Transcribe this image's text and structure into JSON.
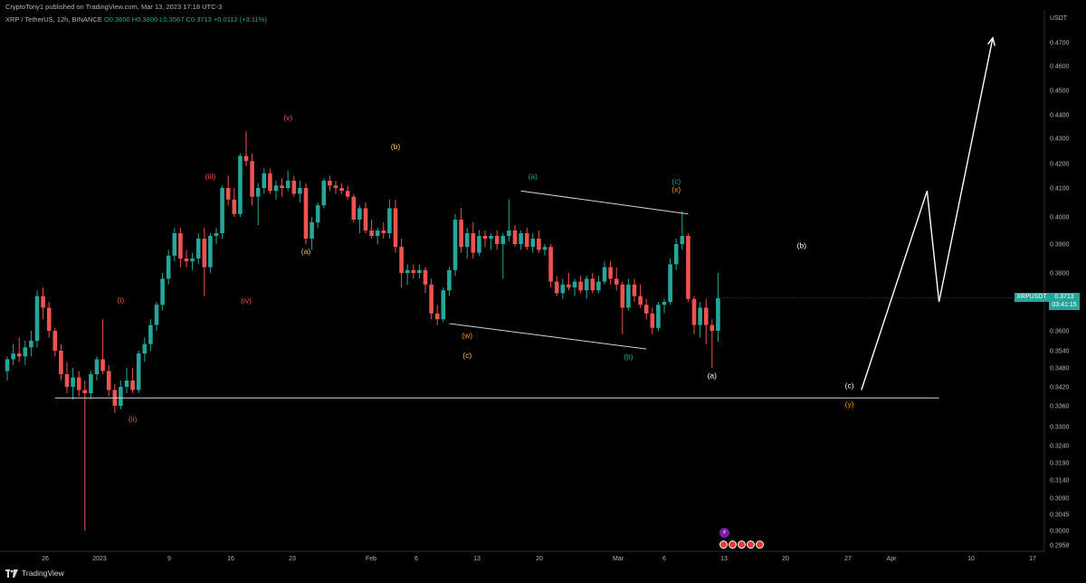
{
  "header": {
    "published": "CryptoTony1 published on TradingView.com, Mar 13, 2023 17:18 UTC-3",
    "symbol_line": "XRP / TetherUS, 12h, BINANCE",
    "ohlc": "O0.3600 H0.3800 L0.3567 C0.3713 +0.0112 (+3.11%)"
  },
  "currency": "USDT",
  "last_price": {
    "symbol": "XRPUSDT",
    "price": "0.3713",
    "countdown": "03:41:15",
    "color": "#26a69a"
  },
  "footer": {
    "brand": "TradingView"
  },
  "event_icons": {
    "bolt": "⚡",
    "flag_color": "#e53935",
    "flag_count": 5
  },
  "chart_data": {
    "type": "candlestick",
    "y_axis": {
      "ticks": [
        "0.4700",
        "0.4600",
        "0.4500",
        "0.4400",
        "0.4300",
        "0.4200",
        "0.4100",
        "0.4000",
        "0.3900",
        "0.3800",
        "0.3700",
        "0.3600",
        "0.3540",
        "0.3480",
        "0.3420",
        "0.3360",
        "0.3300",
        "0.3240",
        "0.3190",
        "0.3140",
        "0.3090",
        "0.3045",
        "0.3000",
        "0.2958"
      ]
    },
    "x_axis": {
      "ticks": [
        "26",
        "2023",
        "2",
        "9",
        "16",
        "23",
        "Feb",
        "6",
        "13",
        "20",
        "Mar",
        "6",
        "13",
        "20",
        "27",
        "Apr",
        "10",
        "17"
      ]
    },
    "colors": {
      "up": "#26a69a",
      "down": "#ef5350"
    },
    "candles": [
      {
        "o": 0.347,
        "h": 0.352,
        "l": 0.344,
        "c": 0.351
      },
      {
        "o": 0.351,
        "h": 0.356,
        "l": 0.349,
        "c": 0.353
      },
      {
        "o": 0.353,
        "h": 0.358,
        "l": 0.35,
        "c": 0.352
      },
      {
        "o": 0.352,
        "h": 0.357,
        "l": 0.349,
        "c": 0.355
      },
      {
        "o": 0.355,
        "h": 0.36,
        "l": 0.352,
        "c": 0.357
      },
      {
        "o": 0.357,
        "h": 0.374,
        "l": 0.355,
        "c": 0.372
      },
      {
        "o": 0.372,
        "h": 0.375,
        "l": 0.364,
        "c": 0.368
      },
      {
        "o": 0.368,
        "h": 0.37,
        "l": 0.358,
        "c": 0.36
      },
      {
        "o": 0.36,
        "h": 0.361,
        "l": 0.352,
        "c": 0.354
      },
      {
        "o": 0.354,
        "h": 0.356,
        "l": 0.344,
        "c": 0.346
      },
      {
        "o": 0.346,
        "h": 0.35,
        "l": 0.34,
        "c": 0.342
      },
      {
        "o": 0.342,
        "h": 0.348,
        "l": 0.338,
        "c": 0.345
      },
      {
        "o": 0.345,
        "h": 0.347,
        "l": 0.339,
        "c": 0.341
      },
      {
        "o": 0.341,
        "h": 0.344,
        "l": 0.3,
        "c": 0.34
      },
      {
        "o": 0.34,
        "h": 0.347,
        "l": 0.338,
        "c": 0.346
      },
      {
        "o": 0.346,
        "h": 0.352,
        "l": 0.344,
        "c": 0.351
      },
      {
        "o": 0.351,
        "h": 0.364,
        "l": 0.346,
        "c": 0.347
      },
      {
        "o": 0.347,
        "h": 0.349,
        "l": 0.339,
        "c": 0.341
      },
      {
        "o": 0.341,
        "h": 0.343,
        "l": 0.334,
        "c": 0.336
      },
      {
        "o": 0.336,
        "h": 0.344,
        "l": 0.335,
        "c": 0.342
      },
      {
        "o": 0.342,
        "h": 0.348,
        "l": 0.34,
        "c": 0.344
      },
      {
        "o": 0.344,
        "h": 0.348,
        "l": 0.34,
        "c": 0.341
      },
      {
        "o": 0.341,
        "h": 0.354,
        "l": 0.34,
        "c": 0.353
      },
      {
        "o": 0.353,
        "h": 0.358,
        "l": 0.35,
        "c": 0.356
      },
      {
        "o": 0.356,
        "h": 0.364,
        "l": 0.354,
        "c": 0.362
      },
      {
        "o": 0.362,
        "h": 0.37,
        "l": 0.36,
        "c": 0.369
      },
      {
        "o": 0.369,
        "h": 0.38,
        "l": 0.367,
        "c": 0.378
      },
      {
        "o": 0.378,
        "h": 0.388,
        "l": 0.376,
        "c": 0.386
      },
      {
        "o": 0.386,
        "h": 0.396,
        "l": 0.384,
        "c": 0.394
      },
      {
        "o": 0.394,
        "h": 0.396,
        "l": 0.382,
        "c": 0.385
      },
      {
        "o": 0.385,
        "h": 0.388,
        "l": 0.382,
        "c": 0.384
      },
      {
        "o": 0.384,
        "h": 0.387,
        "l": 0.381,
        "c": 0.385
      },
      {
        "o": 0.385,
        "h": 0.394,
        "l": 0.383,
        "c": 0.392
      },
      {
        "o": 0.392,
        "h": 0.396,
        "l": 0.372,
        "c": 0.382
      },
      {
        "o": 0.382,
        "h": 0.394,
        "l": 0.38,
        "c": 0.393
      },
      {
        "o": 0.393,
        "h": 0.396,
        "l": 0.39,
        "c": 0.394
      },
      {
        "o": 0.394,
        "h": 0.411,
        "l": 0.392,
        "c": 0.41
      },
      {
        "o": 0.41,
        "h": 0.415,
        "l": 0.404,
        "c": 0.406
      },
      {
        "o": 0.406,
        "h": 0.41,
        "l": 0.4,
        "c": 0.401
      },
      {
        "o": 0.401,
        "h": 0.424,
        "l": 0.4,
        "c": 0.423
      },
      {
        "o": 0.423,
        "h": 0.433,
        "l": 0.419,
        "c": 0.421
      },
      {
        "o": 0.421,
        "h": 0.424,
        "l": 0.404,
        "c": 0.407
      },
      {
        "o": 0.407,
        "h": 0.412,
        "l": 0.397,
        "c": 0.41
      },
      {
        "o": 0.41,
        "h": 0.418,
        "l": 0.408,
        "c": 0.416
      },
      {
        "o": 0.416,
        "h": 0.418,
        "l": 0.408,
        "c": 0.409
      },
      {
        "o": 0.409,
        "h": 0.413,
        "l": 0.406,
        "c": 0.411
      },
      {
        "o": 0.411,
        "h": 0.414,
        "l": 0.407,
        "c": 0.41
      },
      {
        "o": 0.41,
        "h": 0.417,
        "l": 0.409,
        "c": 0.413
      },
      {
        "o": 0.413,
        "h": 0.415,
        "l": 0.407,
        "c": 0.408
      },
      {
        "o": 0.408,
        "h": 0.413,
        "l": 0.405,
        "c": 0.41
      },
      {
        "o": 0.41,
        "h": 0.412,
        "l": 0.39,
        "c": 0.392
      },
      {
        "o": 0.392,
        "h": 0.4,
        "l": 0.388,
        "c": 0.398
      },
      {
        "o": 0.398,
        "h": 0.405,
        "l": 0.396,
        "c": 0.404
      },
      {
        "o": 0.404,
        "h": 0.414,
        "l": 0.403,
        "c": 0.413
      },
      {
        "o": 0.413,
        "h": 0.415,
        "l": 0.409,
        "c": 0.411
      },
      {
        "o": 0.411,
        "h": 0.413,
        "l": 0.408,
        "c": 0.41
      },
      {
        "o": 0.41,
        "h": 0.412,
        "l": 0.408,
        "c": 0.409
      },
      {
        "o": 0.409,
        "h": 0.411,
        "l": 0.406,
        "c": 0.407
      },
      {
        "o": 0.407,
        "h": 0.408,
        "l": 0.398,
        "c": 0.399
      },
      {
        "o": 0.399,
        "h": 0.404,
        "l": 0.394,
        "c": 0.403
      },
      {
        "o": 0.403,
        "h": 0.405,
        "l": 0.394,
        "c": 0.395
      },
      {
        "o": 0.395,
        "h": 0.399,
        "l": 0.392,
        "c": 0.393
      },
      {
        "o": 0.393,
        "h": 0.396,
        "l": 0.39,
        "c": 0.395
      },
      {
        "o": 0.395,
        "h": 0.398,
        "l": 0.392,
        "c": 0.394
      },
      {
        "o": 0.394,
        "h": 0.406,
        "l": 0.392,
        "c": 0.403
      },
      {
        "o": 0.403,
        "h": 0.406,
        "l": 0.387,
        "c": 0.389
      },
      {
        "o": 0.389,
        "h": 0.392,
        "l": 0.375,
        "c": 0.38
      },
      {
        "o": 0.38,
        "h": 0.383,
        "l": 0.376,
        "c": 0.381
      },
      {
        "o": 0.381,
        "h": 0.383,
        "l": 0.378,
        "c": 0.38
      },
      {
        "o": 0.38,
        "h": 0.383,
        "l": 0.378,
        "c": 0.381
      },
      {
        "o": 0.381,
        "h": 0.382,
        "l": 0.373,
        "c": 0.376
      },
      {
        "o": 0.376,
        "h": 0.378,
        "l": 0.364,
        "c": 0.366
      },
      {
        "o": 0.366,
        "h": 0.369,
        "l": 0.362,
        "c": 0.364
      },
      {
        "o": 0.364,
        "h": 0.375,
        "l": 0.363,
        "c": 0.374
      },
      {
        "o": 0.374,
        "h": 0.382,
        "l": 0.372,
        "c": 0.381
      },
      {
        "o": 0.381,
        "h": 0.401,
        "l": 0.379,
        "c": 0.399
      },
      {
        "o": 0.399,
        "h": 0.403,
        "l": 0.387,
        "c": 0.389
      },
      {
        "o": 0.389,
        "h": 0.396,
        "l": 0.385,
        "c": 0.394
      },
      {
        "o": 0.394,
        "h": 0.398,
        "l": 0.385,
        "c": 0.387
      },
      {
        "o": 0.387,
        "h": 0.395,
        "l": 0.386,
        "c": 0.393
      },
      {
        "o": 0.393,
        "h": 0.395,
        "l": 0.389,
        "c": 0.392
      },
      {
        "o": 0.392,
        "h": 0.394,
        "l": 0.388,
        "c": 0.393
      },
      {
        "o": 0.393,
        "h": 0.395,
        "l": 0.388,
        "c": 0.39
      },
      {
        "o": 0.39,
        "h": 0.394,
        "l": 0.378,
        "c": 0.393
      },
      {
        "o": 0.393,
        "h": 0.406,
        "l": 0.391,
        "c": 0.395
      },
      {
        "o": 0.395,
        "h": 0.397,
        "l": 0.389,
        "c": 0.39
      },
      {
        "o": 0.39,
        "h": 0.395,
        "l": 0.388,
        "c": 0.394
      },
      {
        "o": 0.394,
        "h": 0.396,
        "l": 0.388,
        "c": 0.389
      },
      {
        "o": 0.389,
        "h": 0.394,
        "l": 0.387,
        "c": 0.392
      },
      {
        "o": 0.392,
        "h": 0.395,
        "l": 0.387,
        "c": 0.388
      },
      {
        "o": 0.388,
        "h": 0.39,
        "l": 0.386,
        "c": 0.389
      },
      {
        "o": 0.389,
        "h": 0.39,
        "l": 0.375,
        "c": 0.377
      },
      {
        "o": 0.377,
        "h": 0.379,
        "l": 0.372,
        "c": 0.373
      },
      {
        "o": 0.373,
        "h": 0.378,
        "l": 0.371,
        "c": 0.376
      },
      {
        "o": 0.376,
        "h": 0.38,
        "l": 0.374,
        "c": 0.375
      },
      {
        "o": 0.375,
        "h": 0.378,
        "l": 0.372,
        "c": 0.377
      },
      {
        "o": 0.377,
        "h": 0.379,
        "l": 0.373,
        "c": 0.374
      },
      {
        "o": 0.374,
        "h": 0.379,
        "l": 0.371,
        "c": 0.378
      },
      {
        "o": 0.378,
        "h": 0.38,
        "l": 0.373,
        "c": 0.374
      },
      {
        "o": 0.374,
        "h": 0.379,
        "l": 0.373,
        "c": 0.377
      },
      {
        "o": 0.377,
        "h": 0.384,
        "l": 0.376,
        "c": 0.382
      },
      {
        "o": 0.382,
        "h": 0.384,
        "l": 0.376,
        "c": 0.378
      },
      {
        "o": 0.378,
        "h": 0.382,
        "l": 0.374,
        "c": 0.376
      },
      {
        "o": 0.376,
        "h": 0.377,
        "l": 0.359,
        "c": 0.368
      },
      {
        "o": 0.368,
        "h": 0.378,
        "l": 0.367,
        "c": 0.376
      },
      {
        "o": 0.376,
        "h": 0.378,
        "l": 0.37,
        "c": 0.372
      },
      {
        "o": 0.372,
        "h": 0.376,
        "l": 0.368,
        "c": 0.369
      },
      {
        "o": 0.369,
        "h": 0.371,
        "l": 0.364,
        "c": 0.366
      },
      {
        "o": 0.366,
        "h": 0.368,
        "l": 0.359,
        "c": 0.361
      },
      {
        "o": 0.361,
        "h": 0.37,
        "l": 0.36,
        "c": 0.369
      },
      {
        "o": 0.369,
        "h": 0.371,
        "l": 0.366,
        "c": 0.37
      },
      {
        "o": 0.37,
        "h": 0.385,
        "l": 0.369,
        "c": 0.383
      },
      {
        "o": 0.383,
        "h": 0.392,
        "l": 0.381,
        "c": 0.39
      },
      {
        "o": 0.39,
        "h": 0.402,
        "l": 0.388,
        "c": 0.393
      },
      {
        "o": 0.393,
        "h": 0.394,
        "l": 0.37,
        "c": 0.371
      },
      {
        "o": 0.371,
        "h": 0.372,
        "l": 0.359,
        "c": 0.362
      },
      {
        "o": 0.362,
        "h": 0.37,
        "l": 0.358,
        "c": 0.368
      },
      {
        "o": 0.368,
        "h": 0.371,
        "l": 0.356,
        "c": 0.362
      },
      {
        "o": 0.362,
        "h": 0.364,
        "l": 0.348,
        "c": 0.36
      },
      {
        "o": 0.36,
        "h": 0.38,
        "l": 0.3567,
        "c": 0.3713
      }
    ],
    "annotations": {
      "wave_labels": [
        {
          "text": "(i)",
          "color": "#ef5350",
          "i": 19,
          "p": 0.369,
          "pos": "above"
        },
        {
          "text": "(ii)",
          "color": "#ef5350",
          "i": 21,
          "p": 0.3335,
          "pos": "below"
        },
        {
          "text": "(iii)",
          "color": "#ef5350",
          "i": 34,
          "p": 0.413,
          "pos": "above"
        },
        {
          "text": "(iv)",
          "color": "#ef5350",
          "i": 40,
          "p": 0.372,
          "pos": "below"
        },
        {
          "text": "(v)",
          "color": "#ef5350",
          "i": 47,
          "p": 0.437,
          "pos": "above"
        },
        {
          "text": "(a)",
          "color": "#f0c05a",
          "i": 50,
          "p": 0.389,
          "pos": "below"
        },
        {
          "text": "(b)",
          "color": "#f0c05a",
          "i": 65,
          "p": 0.425,
          "pos": "above"
        },
        {
          "text": "(w)",
          "color": "#ff9800",
          "i": 77,
          "p": 0.36,
          "pos": "below"
        },
        {
          "text": "(c)",
          "color": "#f0c05a",
          "i": 77,
          "p": 0.354,
          "pos": "below"
        },
        {
          "text": "(a)",
          "color": "#26a69a",
          "i": 88,
          "p": 0.413,
          "pos": "above"
        },
        {
          "text": "(b)",
          "color": "#26a69a",
          "i": 104,
          "p": 0.3535,
          "pos": "below"
        },
        {
          "text": "(c)",
          "color": "#26a69a",
          "i": 112,
          "p": 0.411,
          "pos": "above"
        },
        {
          "text": "(x)",
          "color": "#ff9800",
          "i": 112,
          "p": 0.408,
          "pos": "above"
        },
        {
          "text": "(a)",
          "color": "#ffffff",
          "i": 118,
          "p": 0.347,
          "pos": "below"
        },
        {
          "text": "(b)",
          "color": "#ffffff",
          "i": 133,
          "p": 0.388,
          "pos": "above"
        },
        {
          "text": "(c)",
          "color": "#ffffff",
          "i": 141,
          "p": 0.341,
          "pos": "above"
        },
        {
          "text": "(y)",
          "color": "#ff9800",
          "i": 141,
          "p": 0.338,
          "pos": "below"
        }
      ],
      "support_level": 0.3385,
      "channel": {
        "upper": [
          {
            "i": 86,
            "p": 0.409
          },
          {
            "i": 114,
            "p": 0.401
          }
        ],
        "lower": [
          {
            "i": 74,
            "p": 0.3625
          },
          {
            "i": 107,
            "p": 0.3545
          }
        ]
      },
      "projection": [
        {
          "i": 143,
          "p": 0.341
        },
        {
          "i": 154,
          "p": 0.409
        },
        {
          "i": 156,
          "p": 0.37
        },
        {
          "i": 165,
          "p": 0.472
        }
      ]
    }
  }
}
